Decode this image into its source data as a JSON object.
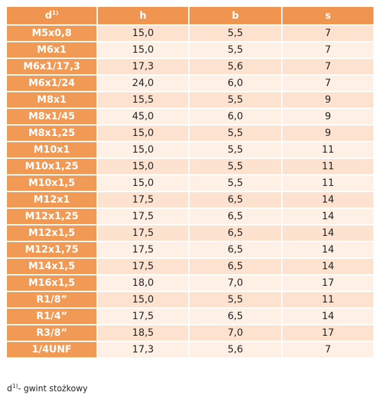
{
  "table": {
    "header": [
      "d",
      "h",
      "b",
      "s"
    ],
    "header_sup": "1)",
    "rows": [
      [
        "M5x0,8",
        "15,0",
        "5,5",
        "7"
      ],
      [
        "M6x1",
        "15,0",
        "5,5",
        "7"
      ],
      [
        "M6x1/17,3",
        "17,3",
        "5,6",
        "7"
      ],
      [
        "M6x1/24",
        "24,0",
        "6,0",
        "7"
      ],
      [
        "M8x1",
        "15,5",
        "5,5",
        "9"
      ],
      [
        "M8x1/45",
        "45,0",
        "6,0",
        "9"
      ],
      [
        "M8x1,25",
        "15,0",
        "5,5",
        "9"
      ],
      [
        "M10x1",
        "15,0",
        "5,5",
        "11"
      ],
      [
        "M10x1,25",
        "15,0",
        "5,5",
        "11"
      ],
      [
        "M10x1,5",
        "15,0",
        "5,5",
        "11"
      ],
      [
        "M12x1",
        "17,5",
        "6,5",
        "14"
      ],
      [
        "M12x1,25",
        "17,5",
        "6,5",
        "14"
      ],
      [
        "M12x1,5",
        "17,5",
        "6,5",
        "14"
      ],
      [
        "M12x1,75",
        "17,5",
        "6,5",
        "14"
      ],
      [
        "M14x1,5",
        "17,5",
        "6,5",
        "14"
      ],
      [
        "M16x1,5",
        "18,0",
        "7,0",
        "17"
      ],
      [
        "R1/8”",
        "15,0",
        "5,5",
        "11"
      ],
      [
        "R1/4”",
        "17,5",
        "6,5",
        "14"
      ],
      [
        "R3/8”",
        "18,5",
        "7,0",
        "17"
      ],
      [
        "1/4UNF",
        "17,3",
        "5,6",
        "7"
      ]
    ]
  },
  "footnote": {
    "symbol": "d",
    "sup": "1)",
    "text": "- gwint stożkowy"
  }
}
